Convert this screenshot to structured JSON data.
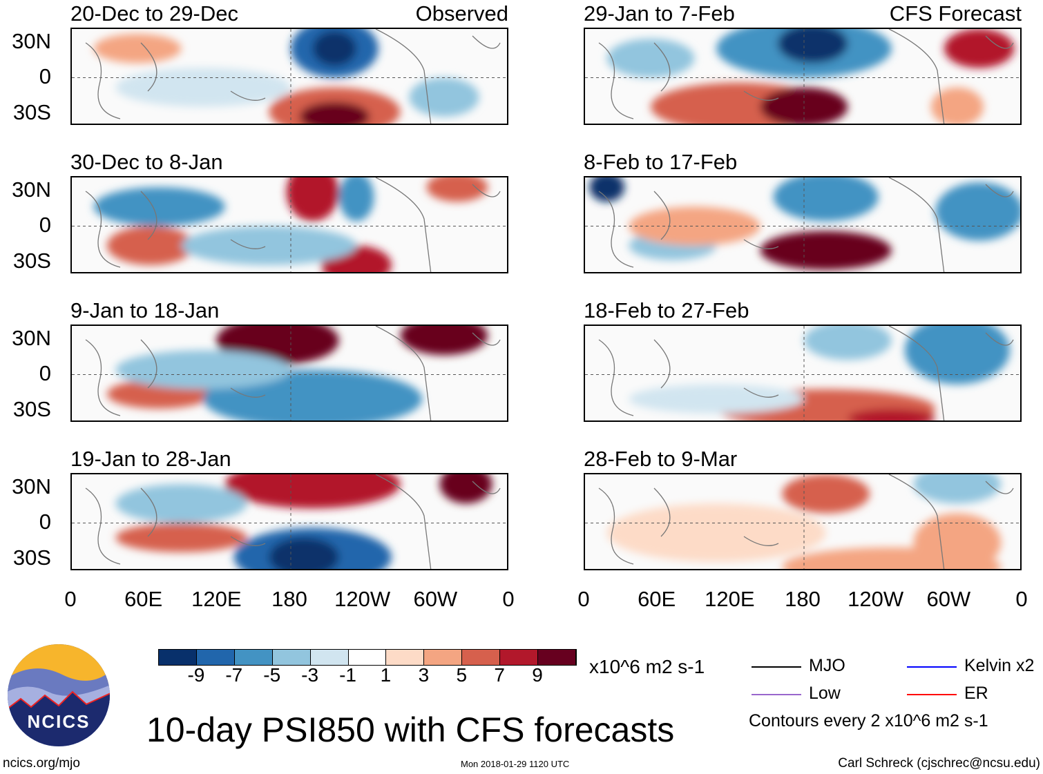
{
  "chart_data": {
    "type": "heatmap",
    "title": "10-day PSI850 with CFS forecasts",
    "variable": "PSI850 anomaly",
    "units": "x10^6 m2 s-1",
    "columns": [
      {
        "label": "Observed",
        "panels": [
          "20-Dec to 29-Dec",
          "30-Dec to 8-Jan",
          "9-Jan to 18-Jan",
          "19-Jan to 28-Jan"
        ]
      },
      {
        "label": "CFS Forecast",
        "panels": [
          "29-Jan to 7-Feb",
          "8-Feb to 17-Feb",
          "18-Feb to 27-Feb",
          "28-Feb to 9-Mar"
        ]
      }
    ],
    "y_ticks": [
      "30N",
      "0",
      "30S"
    ],
    "x_ticks": [
      "0",
      "60E",
      "120E",
      "180",
      "120W",
      "60W",
      "0"
    ],
    "colorbar": {
      "levels": [
        -9,
        -7,
        -5,
        -3,
        -1,
        1,
        3,
        5,
        7,
        9
      ],
      "colors": [
        "#08306b",
        "#2166ac",
        "#4393c3",
        "#92c5de",
        "#d1e5f0",
        "#ffffff",
        "#fddbc7",
        "#f4a582",
        "#d6604d",
        "#b2182b",
        "#67001f"
      ]
    },
    "legend": [
      {
        "label": "MJO",
        "color": "#000000"
      },
      {
        "label": "Kelvin x2",
        "color": "#0000ff"
      },
      {
        "label": "Low",
        "color": "#9966cc"
      },
      {
        "label": "ER",
        "color": "#ff0000"
      }
    ],
    "contour_note": "Contours every 2 x10^6 m2 s-1"
  },
  "footer": {
    "site": "ncics.org/mjo",
    "timestamp": "Mon 2018-01-29 1120 UTC",
    "author": "Carl Schreck (cjschrec@ncsu.edu)",
    "logo_text": "NCICS"
  }
}
